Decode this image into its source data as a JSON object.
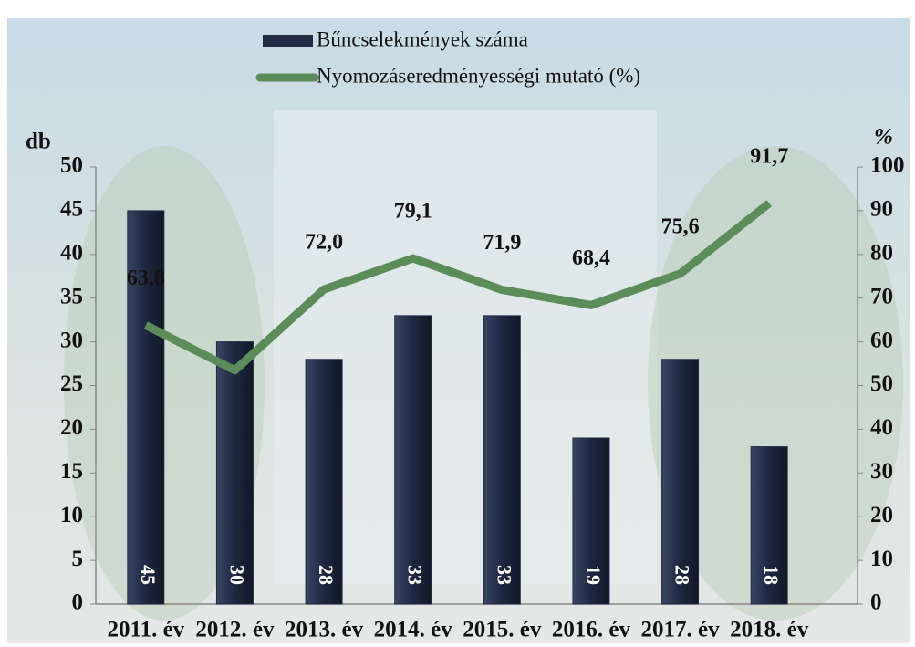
{
  "chart_data": {
    "type": "bar",
    "categories": [
      "2011. év",
      "2012. év",
      "2013. év",
      "2014. év",
      "2015. év",
      "2016. év",
      "2017. év",
      "2018. év"
    ],
    "series": [
      {
        "name": "Bűncselekmények száma",
        "type": "bar",
        "color": "#232c45",
        "values": [
          45,
          30,
          28,
          33,
          33,
          19,
          28,
          18
        ]
      },
      {
        "name": "Nyomozáseredményességi mutató (%)",
        "type": "line",
        "axis": "y2",
        "color": "#5b8c5a",
        "values": [
          63.8,
          53.5,
          72.0,
          79.1,
          71.9,
          68.4,
          75.6,
          91.7
        ],
        "value_labels": [
          "63,8",
          null,
          "72,0",
          "79,1",
          "71,9",
          "68,4",
          "75,6",
          "91,7"
        ]
      }
    ],
    "ylabel": "db",
    "y2label": "%",
    "ylim": [
      0,
      50
    ],
    "yticks": [
      0,
      5,
      10,
      15,
      20,
      25,
      30,
      35,
      40,
      45,
      50
    ],
    "y2lim": [
      0,
      100
    ],
    "y2ticks": [
      0,
      10,
      20,
      30,
      40,
      50,
      60,
      70,
      80,
      90,
      100
    ]
  }
}
